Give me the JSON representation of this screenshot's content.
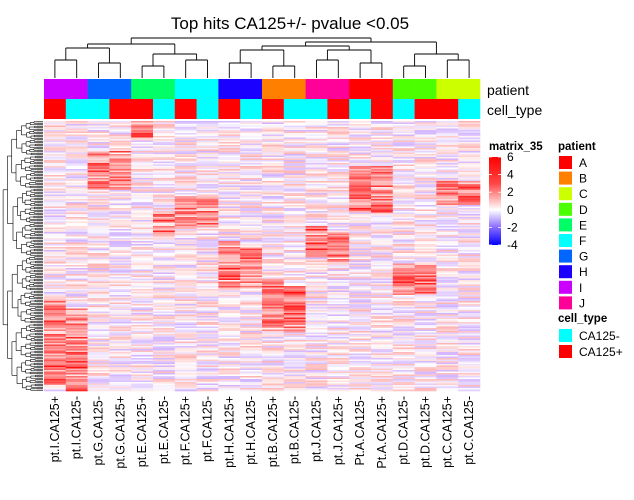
{
  "chart_data": {
    "type": "heatmap",
    "title": "Top hits CA125+/- pvalue <0.05",
    "columns": [
      "pt.I.CA125+",
      "pt.I.CA125-",
      "pt.G.CA125-",
      "pt.G.CA125+",
      "pt.E.CA125+",
      "pt.E.CA125-",
      "pt.F.CA125+",
      "pt.F.CA125-",
      "pt.H.CA125+",
      "pt.H.CA125-",
      "pt.B.CA125+",
      "pt.B.CA125-",
      "pt.J.CA125-",
      "pt.J.CA125+",
      "Pt.A.CA125-",
      "Pt.A.CA125+",
      "pt.D.CA125-",
      "pt.D.CA125+",
      "pt.C.CA125+",
      "pt.C.CA125-"
    ],
    "annotation_rows": [
      {
        "name": "patient",
        "values": [
          "I",
          "I",
          "G",
          "G",
          "E",
          "E",
          "F",
          "F",
          "H",
          "H",
          "B",
          "B",
          "J",
          "J",
          "A",
          "A",
          "D",
          "D",
          "C",
          "C"
        ]
      },
      {
        "name": "cell_type",
        "values": [
          "CA125+",
          "CA125-",
          "CA125-",
          "CA125+",
          "CA125+",
          "CA125-",
          "CA125+",
          "CA125-",
          "CA125+",
          "CA125-",
          "CA125+",
          "CA125-",
          "CA125-",
          "CA125+",
          "CA125-",
          "CA125+",
          "CA125-",
          "CA125+",
          "CA125+",
          "CA125-"
        ]
      }
    ],
    "color_legend": {
      "title": "matrix_35",
      "ticks": [
        6,
        4,
        2,
        0,
        -2,
        -4
      ],
      "range": [
        -4,
        6
      ]
    },
    "patient_legend": {
      "title": "patient",
      "items": [
        {
          "label": "A",
          "color": "#ff0000"
        },
        {
          "label": "B",
          "color": "#ff8000"
        },
        {
          "label": "C",
          "color": "#ccff00"
        },
        {
          "label": "D",
          "color": "#4cff00"
        },
        {
          "label": "E",
          "color": "#00ff66"
        },
        {
          "label": "F",
          "color": "#00ffff"
        },
        {
          "label": "G",
          "color": "#0066ff"
        },
        {
          "label": "H",
          "color": "#1a00ff"
        },
        {
          "label": "I",
          "color": "#cc00ff"
        },
        {
          "label": "J",
          "color": "#ff0099"
        }
      ]
    },
    "cell_type_legend": {
      "title": "cell_type",
      "items": [
        {
          "label": "CA125-",
          "color": "#00ffff"
        },
        {
          "label": "CA125+",
          "color": "#ff0000"
        }
      ]
    },
    "row_count": 180,
    "colors": {
      "low": "#0000ff",
      "mid": "#ffffff",
      "high": "#ff0000"
    }
  }
}
